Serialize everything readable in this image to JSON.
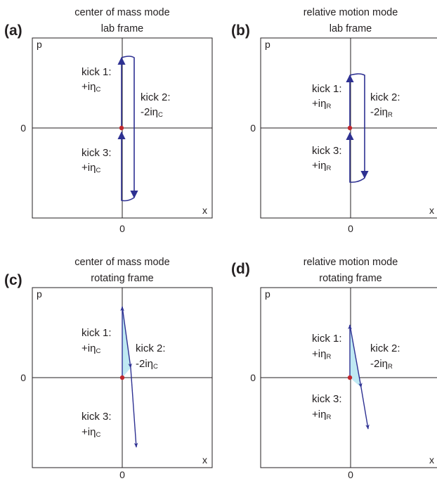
{
  "colors": {
    "arrow": "#2e3192",
    "fill": "#bfe9f3",
    "origin_dot": "#c1272d",
    "frame": "#231f20"
  },
  "panels": [
    {
      "letter": "(a)",
      "title_line1": "center of mass mode",
      "title_line2": "lab frame",
      "p_label": "p",
      "x_label": "x",
      "zero_p": "0",
      "zero_x": "0",
      "kick1": "kick 1:",
      "kick1_pre": "+iη",
      "kick1_sub": "C",
      "kick2": "kick 2:",
      "kick2_pre": "-2iη",
      "kick2_sub": "C",
      "kick3": "kick 3:",
      "kick3_pre": "+iη",
      "kick3_sub": "C"
    },
    {
      "letter": "(b)",
      "title_line1": "relative motion mode",
      "title_line2": "lab frame",
      "p_label": "p",
      "x_label": "x",
      "zero_p": "0",
      "zero_x": "0",
      "kick1": "kick 1:",
      "kick1_pre": "+iη",
      "kick1_sub": "R",
      "kick2": "kick 2:",
      "kick2_pre": "-2iη",
      "kick2_sub": "R",
      "kick3": "kick 3:",
      "kick3_pre": "+iη",
      "kick3_sub": "R"
    },
    {
      "letter": "(c)",
      "title_line1": "center of mass mode",
      "title_line2": "rotating frame",
      "p_label": "p",
      "x_label": "x",
      "zero_p": "0",
      "zero_x": "0",
      "kick1": "kick 1:",
      "kick1_pre": "+iη",
      "kick1_sub": "C",
      "kick2": "kick 2:",
      "kick2_pre": "-2iη",
      "kick2_sub": "C",
      "kick3": "kick 3:",
      "kick3_pre": "+iη",
      "kick3_sub": "C"
    },
    {
      "letter": "(d)",
      "title_line1": "relative motion mode",
      "title_line2": "rotating frame",
      "p_label": "p",
      "x_label": "x",
      "zero_p": "0",
      "zero_x": "0",
      "kick1": "kick 1:",
      "kick1_pre": "+iη",
      "kick1_sub": "R",
      "kick2": "kick 2:",
      "kick2_pre": "-2iη",
      "kick2_sub": "R",
      "kick3": "kick 3:",
      "kick3_pre": "+iη",
      "kick3_sub": "R"
    }
  ]
}
